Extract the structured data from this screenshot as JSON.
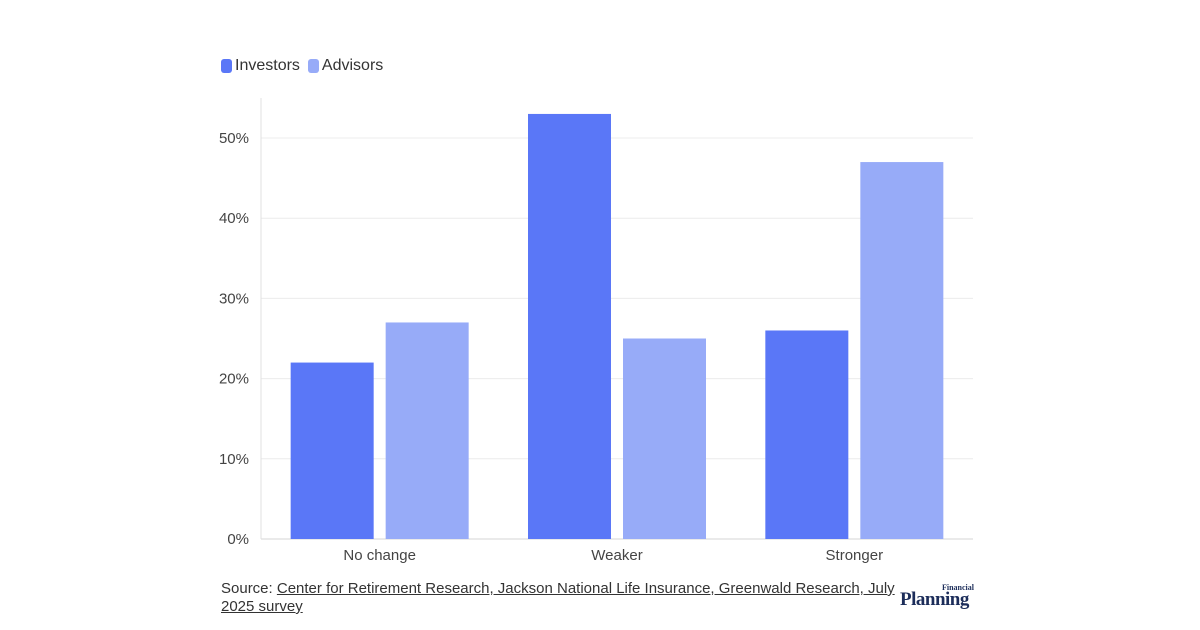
{
  "legend": [
    {
      "label": "Investors",
      "color": "#5a77f7"
    },
    {
      "label": "Advisors",
      "color": "#97abf8"
    }
  ],
  "chart_data": {
    "type": "bar",
    "categories": [
      "No change",
      "Weaker",
      "Stronger"
    ],
    "series": [
      {
        "name": "Investors",
        "values": [
          22,
          53,
          26
        ],
        "color": "#5a77f7"
      },
      {
        "name": "Advisors",
        "values": [
          27,
          25,
          47
        ],
        "color": "#97abf8"
      }
    ],
    "y_ticks": [
      0,
      10,
      20,
      30,
      40,
      50
    ],
    "y_tick_labels": [
      "0%",
      "10%",
      "20%",
      "30%",
      "40%",
      "50%"
    ],
    "ylim": [
      0,
      55
    ],
    "grid": true,
    "legend_position": "top-left"
  },
  "source": {
    "prefix": "Source: ",
    "link_text": "Center for Retirement Research, Jackson National Life Insurance, Greenwald Research, July 2025 survey"
  },
  "logo": {
    "small": "Financial",
    "big": "Planning"
  }
}
